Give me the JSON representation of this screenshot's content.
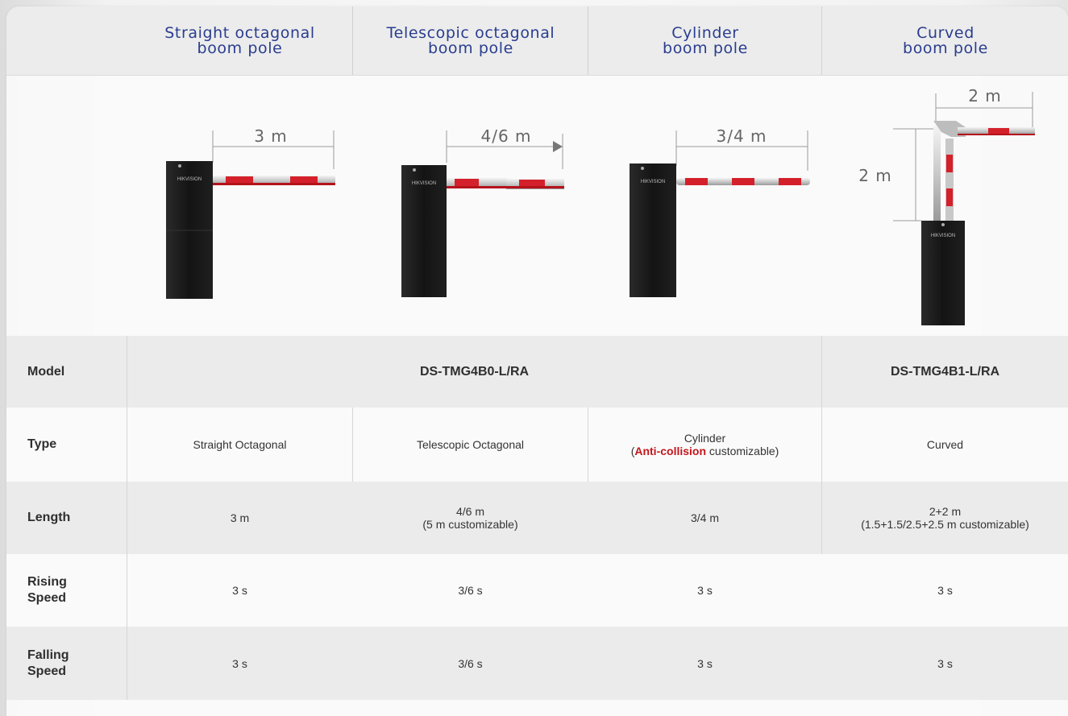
{
  "header": {
    "col1": {
      "line1": "Straight octagonal",
      "line2": "boom pole"
    },
    "col2": {
      "line1": "Telescopic octagonal",
      "line2": "boom pole"
    },
    "col3": {
      "line1": "Cylinder",
      "line2": "boom pole"
    },
    "col4": {
      "line1": "Curved",
      "line2": "boom pole"
    }
  },
  "figures": {
    "straight_length": "3 m",
    "telescopic_length": "4/6 m",
    "cylinder_length": "3/4 m",
    "curved_horizontal": "2 m",
    "curved_vertical": "2 m",
    "brand_mark": "HIKVISION"
  },
  "rows": {
    "model": {
      "label": "Model",
      "v1": "DS-TMG4B0-L/RA",
      "v2": "DS-TMG4B1-L/RA"
    },
    "type": {
      "label": "Type",
      "c1": "Straight Octagonal",
      "c2": "Telescopic Octagonal",
      "c3_line1": "Cylinder",
      "c3_open": "(",
      "c3_highlight": "Anti-collision",
      "c3_rest": " customizable)",
      "c4": "Curved"
    },
    "length": {
      "label": "Length",
      "c1": "3 m",
      "c2_line1": "4/6 m",
      "c2_line2": "(5 m customizable)",
      "c3": "3/4 m",
      "c4_line1": "2+2 m",
      "c4_line2": "(1.5+1.5/2.5+2.5 m customizable)"
    },
    "rising": {
      "label_line1": "Rising",
      "label_line2": "Speed",
      "c1": "3 s",
      "c2": "3/6 s",
      "c3": "3 s",
      "c4": "3 s"
    },
    "falling": {
      "label_line1": "Falling",
      "label_line2": "Speed",
      "c1": "3 s",
      "c2": "3/6 s",
      "c3": "3 s",
      "c4": "3 s"
    }
  },
  "colors": {
    "header_text": "#2a3d8f",
    "highlight": "#c4161c",
    "boom_red": "#d3202a",
    "cabinet": "#1c1c1c"
  }
}
